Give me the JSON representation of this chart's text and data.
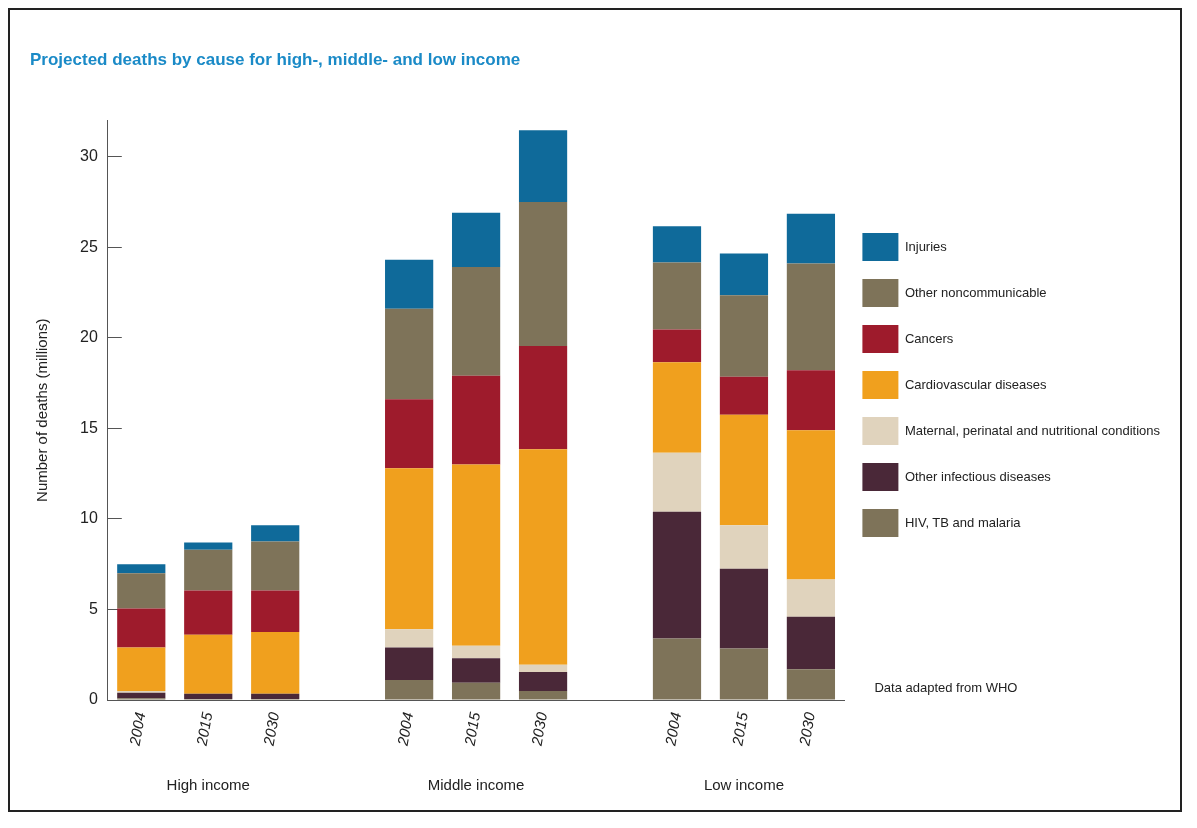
{
  "chart_data": {
    "type": "bar",
    "title": "Projected deaths by cause for high-, middle- and low income",
    "ylabel": "Number of deaths (millions)",
    "categories": [
      "2004",
      "2015",
      "2030",
      null,
      "2004",
      "2015",
      "2030",
      null,
      "2004",
      "2015",
      "2030"
    ],
    "stacked": true,
    "series": [
      {
        "name": "HIV, TB and malaria",
        "color": "#7e7359",
        "values": [
          0.1,
          0.05,
          0.05,
          null,
          1.1,
          0.95,
          0.5,
          null,
          3.4,
          2.85,
          1.7
        ]
      },
      {
        "name": "Other infectious diseases",
        "color": "#4a2838",
        "values": [
          0.3,
          0.3,
          0.3,
          null,
          1.8,
          1.35,
          1.05,
          null,
          7.0,
          4.4,
          2.9
        ]
      },
      {
        "name": "Maternal, perinatal and nutritional conditions",
        "color": "#e0d3bd",
        "values": [
          0.1,
          null,
          null,
          null,
          1.0,
          0.7,
          0.4,
          null,
          3.25,
          2.4,
          2.05
        ]
      },
      {
        "name": "Cardiovascular diseases",
        "color": "#f0a01e",
        "values": [
          2.4,
          3.25,
          3.4,
          null,
          8.9,
          10.0,
          11.9,
          null,
          5.0,
          6.1,
          8.25
        ]
      },
      {
        "name": "Cancers",
        "color": "#9e1b2c",
        "values": [
          2.15,
          2.45,
          2.3,
          null,
          3.8,
          4.9,
          5.7,
          null,
          1.8,
          2.1,
          3.3
        ]
      },
      {
        "name": "Other noncommunicable",
        "color": "#7e7359",
        "values": [
          1.95,
          2.25,
          2.7,
          null,
          5.0,
          6.0,
          7.95,
          null,
          3.7,
          4.5,
          5.9
        ]
      },
      {
        "name": "Injuries",
        "color": "#0f6a9a",
        "values": [
          0.5,
          0.4,
          0.9,
          null,
          2.7,
          3.0,
          3.95,
          null,
          2.0,
          2.3,
          2.75
        ]
      }
    ],
    "ylim": [
      0,
      32
    ],
    "yticks": [
      0,
      5,
      10,
      15,
      20,
      25,
      30
    ],
    "grid": false,
    "legend": "right",
    "annotations": [
      "High income",
      "Middle income",
      "Low income",
      "Data adapted from WHO"
    ]
  }
}
